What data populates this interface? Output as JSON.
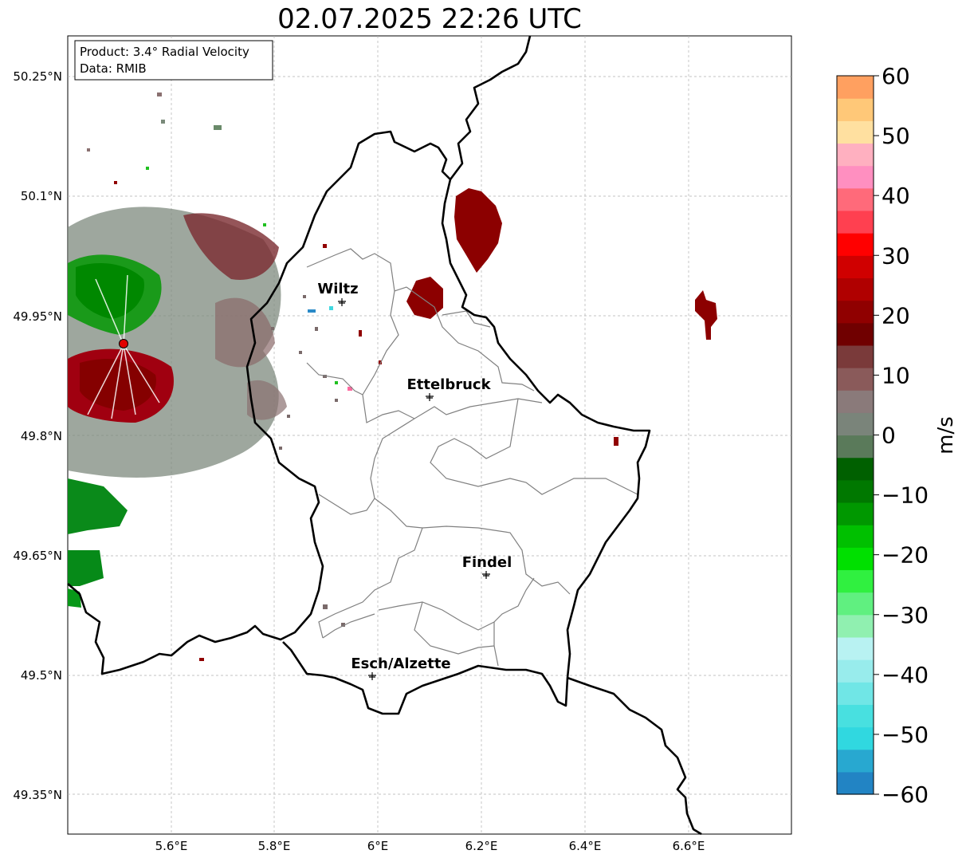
{
  "title": "02.07.2025 22:26 UTC",
  "info_box": {
    "line1": "Product: 3.4° Radial Velocity",
    "line2": "Data: RMIB"
  },
  "lat_ticks": [
    "50.25°N",
    "50.1°N",
    "49.95°N",
    "49.8°N",
    "49.65°N",
    "49.5°N",
    "49.35°N"
  ],
  "lon_ticks": [
    "5.6°E",
    "5.8°E",
    "6°E",
    "6.2°E",
    "6.4°E",
    "6.6°E"
  ],
  "cities": [
    {
      "name": "Wiltz"
    },
    {
      "name": "Ettelbruck"
    },
    {
      "name": "Findel"
    },
    {
      "name": "Esch/Alzette"
    }
  ],
  "colorbar": {
    "label": "m/s",
    "ticks": [
      "60",
      "50",
      "40",
      "30",
      "20",
      "10",
      "0",
      "−10",
      "−20",
      "−30",
      "−40",
      "−50",
      "−60"
    ],
    "min": -60,
    "max": 60,
    "colors": [
      "#2284c4",
      "#28a8d0",
      "#30d8e0",
      "#48e0e0",
      "#70e6e6",
      "#98ecec",
      "#b8f2f2",
      "#90f0b0",
      "#60f080",
      "#30f040",
      "#00e000",
      "#00c000",
      "#009800",
      "#007800",
      "#006000",
      "#5a7a5a",
      "#7a847a",
      "#8a7a7a",
      "#8a5a5a",
      "#7a3a3a",
      "#700000",
      "#900000",
      "#b00000",
      "#d00000",
      "#ff0000",
      "#ff4050",
      "#ff6a7a",
      "#ff8fc0",
      "#ffb0c0",
      "#ffe0a0",
      "#ffc878",
      "#ffa060"
    ]
  },
  "colors": {
    "border": "#000000",
    "canton": "#808080",
    "grid": "#b0b0b0",
    "radar_site": "#e00000"
  }
}
